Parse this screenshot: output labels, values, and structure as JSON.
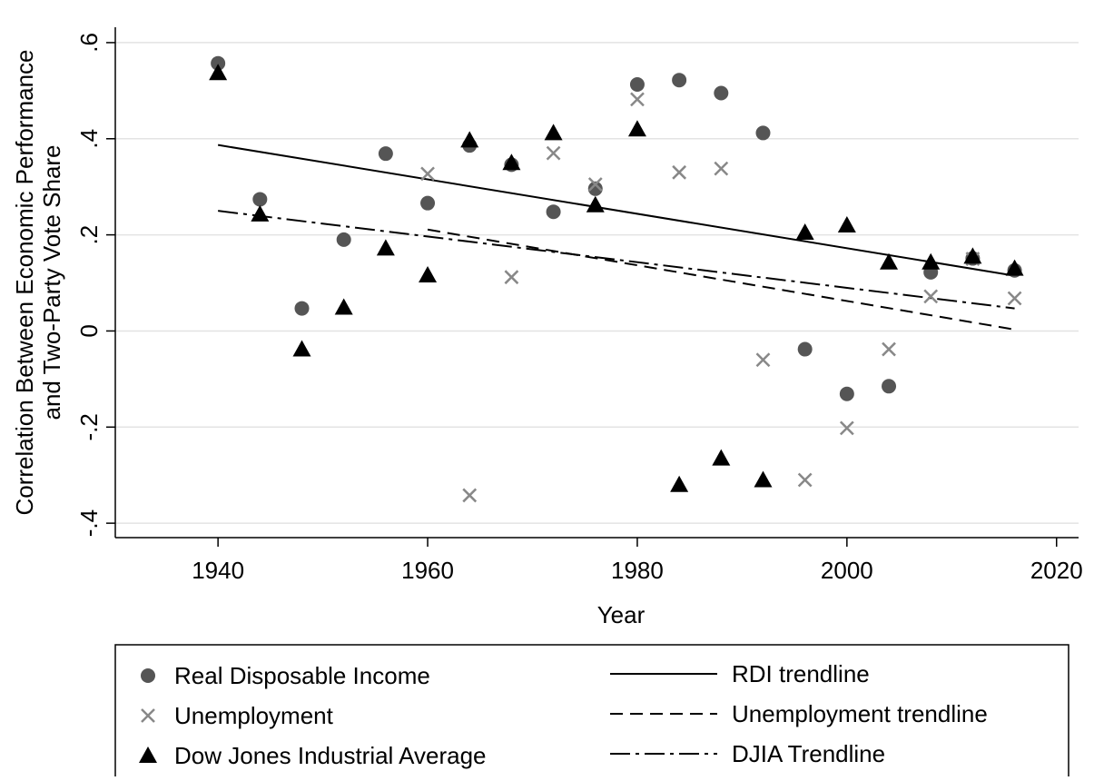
{
  "chart_data": {
    "type": "scatter",
    "y_title": [
      "Correlation Between Economic Performance",
      "and Two-Party Vote Share"
    ],
    "x_title": "Year",
    "x": [
      1940,
      1944,
      1948,
      1952,
      1956,
      1960,
      1964,
      1968,
      1972,
      1976,
      1980,
      1984,
      1988,
      1992,
      1996,
      2000,
      2004,
      2008,
      2012,
      2016
    ],
    "series": [
      {
        "name": "Real Disposable Income",
        "color": "#555555",
        "marker": "circle",
        "values": [
          0.557,
          0.274,
          0.047,
          0.19,
          0.369,
          0.266,
          0.386,
          0.346,
          0.248,
          0.296,
          0.513,
          0.522,
          0.495,
          0.412,
          -0.038,
          -0.131,
          -0.115,
          0.122,
          0.151,
          0.126
        ]
      },
      {
        "name": "Unemployment",
        "color": "#888888",
        "marker": "x",
        "values": [
          null,
          null,
          null,
          null,
          null,
          0.327,
          -0.342,
          0.112,
          0.37,
          0.305,
          0.482,
          0.33,
          0.338,
          -0.06,
          -0.31,
          -0.202,
          -0.038,
          0.072,
          0.15,
          0.068
        ]
      },
      {
        "name": "Dow Jones Industrial Average",
        "color": "#000000",
        "marker": "triangle",
        "values": [
          0.537,
          0.243,
          -0.038,
          0.049,
          0.172,
          0.116,
          0.397,
          0.35,
          0.412,
          0.262,
          0.42,
          -0.32,
          -0.265,
          -0.31,
          0.205,
          0.22,
          0.143,
          0.143,
          0.155,
          0.13
        ]
      }
    ],
    "trendlines": [
      {
        "name": "RDI trendline",
        "color": "#000000",
        "dash": "solid",
        "x": [
          1940,
          2016
        ],
        "values": [
          0.387,
          0.115
        ]
      },
      {
        "name": "Unemployment trendline",
        "color": "#000000",
        "dash": "dashed",
        "x": [
          1960,
          2016
        ],
        "values": [
          0.211,
          0.003
        ]
      },
      {
        "name": "DJIA Trendline",
        "color": "#000000",
        "dash": "dashdot",
        "x": [
          1940,
          2016
        ],
        "values": [
          0.25,
          0.047
        ]
      }
    ],
    "xlim": [
      1930.2,
      2022.1
    ],
    "ylim": [
      -0.43,
      0.632
    ],
    "xticks": [
      1940,
      1960,
      1980,
      2000,
      2020
    ],
    "yticks": [
      {
        "value": -0.4,
        "label": "-.4"
      },
      {
        "value": -0.2,
        "label": "-.2"
      },
      0,
      {
        "value": 0.2,
        "label": ".2"
      },
      {
        "value": 0.4,
        "label": ".4"
      },
      {
        "value": 0.6,
        "label": ".6"
      }
    ],
    "grid": true
  }
}
